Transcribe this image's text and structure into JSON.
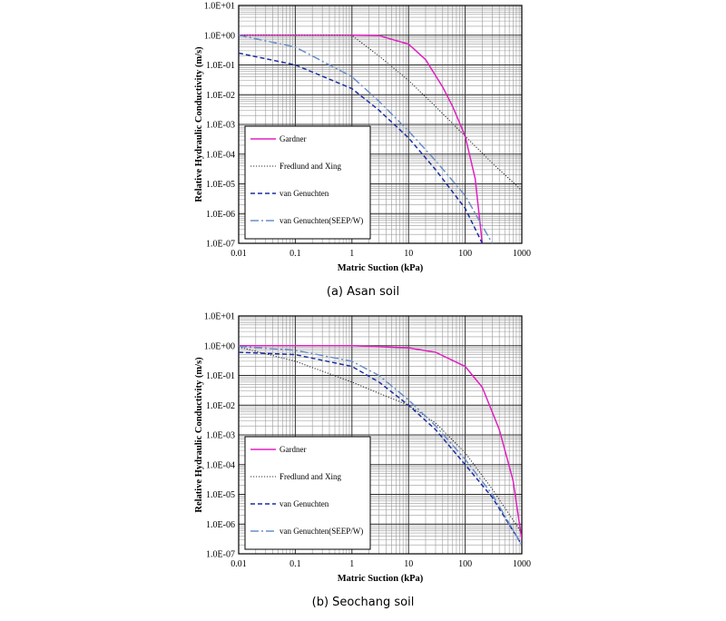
{
  "chart_data": [
    {
      "type": "line",
      "caption": "(a) Asan soil",
      "xlabel": "Matric Suction (kPa)",
      "ylabel": "Relative Hydraulic Conductivity (m/s)",
      "x_scale": "log",
      "y_scale": "log",
      "xlim": [
        0.01,
        1000
      ],
      "ylim": [
        1e-07,
        10
      ],
      "x_ticks": [
        "0.01",
        "0.1",
        "1",
        "10",
        "100",
        "1000"
      ],
      "y_ticks": [
        "1.0E-07",
        "1.0E-06",
        "1.0E-05",
        "1.0E-04",
        "1.0E-03",
        "1.0E-02",
        "1.0E-01",
        "1.0E+00",
        "1.0E+01"
      ],
      "grid": true,
      "legend_position": "lower-left",
      "series": [
        {
          "name": "Gardner",
          "color": "#e020c0",
          "style": "solid",
          "x": [
            0.01,
            1,
            3,
            10,
            20,
            40,
            60,
            100,
            150,
            200
          ],
          "y": [
            1.0,
            1.0,
            0.97,
            0.5,
            0.15,
            0.018,
            0.004,
            0.0004,
            1.5e-05,
            1e-07
          ]
        },
        {
          "name": "Fredlund and Xing",
          "color": "#303030",
          "style": "dotted",
          "x": [
            0.01,
            1,
            3,
            10,
            30,
            100,
            300,
            1000
          ],
          "y": [
            1.0,
            0.98,
            0.2,
            0.03,
            0.004,
            0.0004,
            5e-05,
            6e-06
          ]
        },
        {
          "name": "van Genuchten",
          "color": "#1a2ea0",
          "style": "dashed",
          "x": [
            0.01,
            0.1,
            1,
            3,
            10,
            30,
            100,
            200
          ],
          "y": [
            0.25,
            0.1,
            0.016,
            0.003,
            0.00035,
            3e-05,
            1.5e-06,
            1e-07
          ]
        },
        {
          "name": "van Genuchten(SEEP/W)",
          "color": "#6a8ec8",
          "style": "dashdot",
          "x": [
            0.01,
            0.1,
            1,
            3,
            10,
            30,
            100,
            300
          ],
          "y": [
            1.0,
            0.4,
            0.04,
            0.006,
            0.0006,
            6e-05,
            4e-06,
            1e-07
          ]
        }
      ]
    },
    {
      "type": "line",
      "caption": "(b) Seochang soil",
      "xlabel": "Matric Suction (kPa)",
      "ylabel": "Relative Hydraulic Conductivity (m/s)",
      "x_scale": "log",
      "y_scale": "log",
      "xlim": [
        0.01,
        1000
      ],
      "ylim": [
        1e-07,
        10
      ],
      "x_ticks": [
        "0.01",
        "0.1",
        "1",
        "10",
        "100",
        "1000"
      ],
      "y_ticks": [
        "1.0E-07",
        "1.0E-06",
        "1.0E-05",
        "1.0E-04",
        "1.0E-03",
        "1.0E-02",
        "1.0E-01",
        "1.0E+00",
        "1.0E+01"
      ],
      "grid": true,
      "legend_position": "lower-left",
      "series": [
        {
          "name": "Gardner",
          "color": "#e020c0",
          "style": "solid",
          "x": [
            0.01,
            1,
            10,
            30,
            100,
            200,
            400,
            700,
            1000
          ],
          "y": [
            1.0,
            1.0,
            0.85,
            0.6,
            0.2,
            0.04,
            0.0015,
            3e-05,
            3e-07
          ]
        },
        {
          "name": "Fredlund and Xing",
          "color": "#303030",
          "style": "dotted",
          "x": [
            0.01,
            0.1,
            1,
            3,
            10,
            30,
            100,
            300,
            1000
          ],
          "y": [
            0.9,
            0.3,
            0.06,
            0.025,
            0.01,
            0.0025,
            0.00025,
            1.5e-05,
            5e-07
          ]
        },
        {
          "name": "van Genuchten",
          "color": "#1a2ea0",
          "style": "dashed",
          "x": [
            0.01,
            0.1,
            1,
            3,
            10,
            30,
            100,
            300,
            1000
          ],
          "y": [
            0.6,
            0.5,
            0.2,
            0.06,
            0.01,
            0.0015,
            0.0001,
            8e-06,
            2e-07
          ]
        },
        {
          "name": "van Genuchten(SEEP/W)",
          "color": "#6a8ec8",
          "style": "dashdot",
          "x": [
            0.01,
            0.1,
            1,
            3,
            10,
            30,
            100,
            300,
            1000
          ],
          "y": [
            0.95,
            0.7,
            0.3,
            0.1,
            0.015,
            0.002,
            0.00015,
            1e-05,
            2e-07
          ]
        }
      ]
    }
  ]
}
